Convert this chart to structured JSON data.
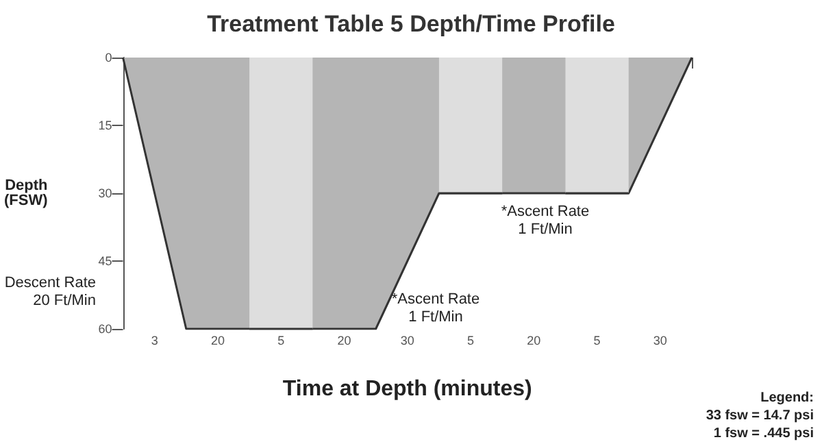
{
  "chart_data": {
    "type": "area",
    "title": "Treatment Table 5 Depth/Time Profile",
    "xlabel": "Time at Depth (minutes)",
    "ylabel": "Depth\n(FSW)",
    "categories": [
      null,
      "3",
      null,
      "20",
      null,
      "5",
      null,
      "20",
      null,
      "30",
      null,
      "5",
      null,
      "20",
      null,
      "5",
      null,
      "30",
      null
    ],
    "series": [
      {
        "color": "#b5b5b5",
        "values": [
          0,
          30,
          60,
          60,
          60,
          60,
          60,
          60,
          60,
          45,
          30,
          30,
          30,
          30,
          30,
          30,
          30,
          15,
          0
        ]
      },
      {
        "color": "#dedede",
        "values": [
          null,
          null,
          null,
          null,
          60,
          60,
          60,
          null,
          null,
          null,
          30,
          30,
          30,
          null,
          30,
          30,
          30,
          null,
          null
        ]
      }
    ],
    "ylim": [
      60,
      0
    ],
    "yticks": [
      0,
      15,
      30,
      45,
      60
    ],
    "annotations": [
      "Descent Rate\n20 Ft/Min",
      "*Ascent Rate\n1 Ft/Min",
      "*Ascent Rate\n1 Ft/Min",
      "Legend:\n33 fsw = 14.7 psi\n1 fsw = .445 psi"
    ]
  }
}
